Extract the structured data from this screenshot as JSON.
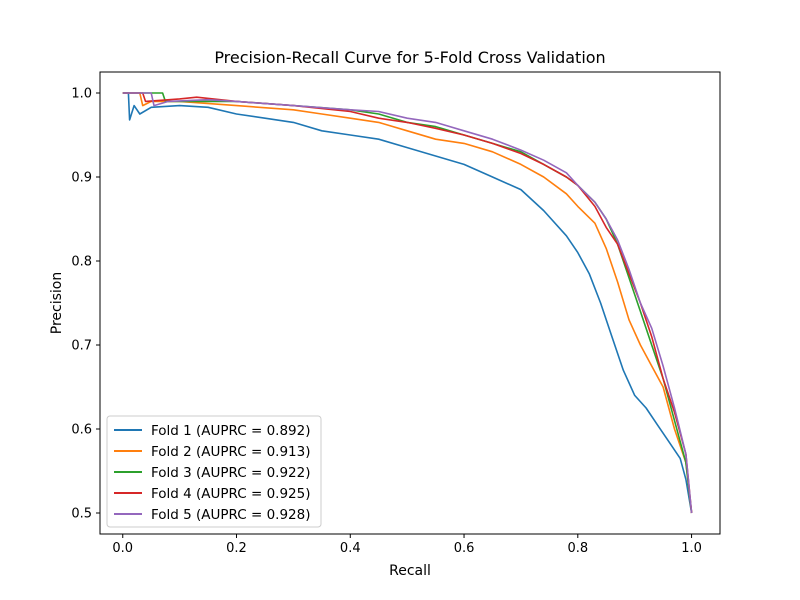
{
  "chart_data": {
    "type": "line",
    "title": "Precision-Recall Curve for 5-Fold Cross Validation",
    "xlabel": "Recall",
    "ylabel": "Precision",
    "xlim": [
      -0.04,
      1.05
    ],
    "ylim": [
      0.475,
      1.025
    ],
    "xticks": [
      "0.0",
      "0.2",
      "0.4",
      "0.6",
      "0.8",
      "1.0"
    ],
    "yticks": [
      "0.5",
      "0.6",
      "0.7",
      "0.8",
      "0.9",
      "1.0"
    ],
    "grid": false,
    "legend_position": "lower-left",
    "colors": [
      "#1f77b4",
      "#ff7f0e",
      "#2ca02c",
      "#d62728",
      "#9467bd"
    ],
    "series": [
      {
        "name": "Fold 1 (AUPRC = 0.892)",
        "points": [
          [
            0.0,
            1.0
          ],
          [
            0.01,
            1.0
          ],
          [
            0.012,
            0.968
          ],
          [
            0.02,
            0.985
          ],
          [
            0.03,
            0.975
          ],
          [
            0.05,
            0.983
          ],
          [
            0.1,
            0.985
          ],
          [
            0.15,
            0.983
          ],
          [
            0.2,
            0.975
          ],
          [
            0.25,
            0.97
          ],
          [
            0.3,
            0.965
          ],
          [
            0.35,
            0.955
          ],
          [
            0.4,
            0.95
          ],
          [
            0.45,
            0.945
          ],
          [
            0.5,
            0.935
          ],
          [
            0.55,
            0.925
          ],
          [
            0.6,
            0.915
          ],
          [
            0.65,
            0.9
          ],
          [
            0.7,
            0.885
          ],
          [
            0.74,
            0.86
          ],
          [
            0.78,
            0.83
          ],
          [
            0.8,
            0.81
          ],
          [
            0.82,
            0.785
          ],
          [
            0.84,
            0.75
          ],
          [
            0.86,
            0.71
          ],
          [
            0.88,
            0.67
          ],
          [
            0.9,
            0.64
          ],
          [
            0.92,
            0.625
          ],
          [
            0.94,
            0.605
          ],
          [
            0.96,
            0.585
          ],
          [
            0.98,
            0.565
          ],
          [
            0.99,
            0.54
          ],
          [
            1.0,
            0.5
          ]
        ]
      },
      {
        "name": "Fold 2 (AUPRC = 0.913)",
        "points": [
          [
            0.0,
            1.0
          ],
          [
            0.03,
            1.0
          ],
          [
            0.035,
            0.985
          ],
          [
            0.05,
            0.99
          ],
          [
            0.1,
            0.99
          ],
          [
            0.2,
            0.985
          ],
          [
            0.3,
            0.98
          ],
          [
            0.35,
            0.975
          ],
          [
            0.4,
            0.97
          ],
          [
            0.45,
            0.965
          ],
          [
            0.5,
            0.955
          ],
          [
            0.55,
            0.945
          ],
          [
            0.6,
            0.94
          ],
          [
            0.65,
            0.93
          ],
          [
            0.7,
            0.915
          ],
          [
            0.74,
            0.9
          ],
          [
            0.78,
            0.88
          ],
          [
            0.8,
            0.865
          ],
          [
            0.83,
            0.845
          ],
          [
            0.85,
            0.815
          ],
          [
            0.87,
            0.775
          ],
          [
            0.89,
            0.73
          ],
          [
            0.91,
            0.7
          ],
          [
            0.93,
            0.675
          ],
          [
            0.95,
            0.65
          ],
          [
            0.97,
            0.6
          ],
          [
            0.99,
            0.56
          ],
          [
            1.0,
            0.5
          ]
        ]
      },
      {
        "name": "Fold 3 (AUPRC = 0.922)",
        "points": [
          [
            0.0,
            1.0
          ],
          [
            0.07,
            1.0
          ],
          [
            0.075,
            0.99
          ],
          [
            0.1,
            0.99
          ],
          [
            0.2,
            0.99
          ],
          [
            0.3,
            0.985
          ],
          [
            0.4,
            0.98
          ],
          [
            0.45,
            0.975
          ],
          [
            0.5,
            0.965
          ],
          [
            0.55,
            0.96
          ],
          [
            0.6,
            0.95
          ],
          [
            0.65,
            0.94
          ],
          [
            0.7,
            0.93
          ],
          [
            0.74,
            0.915
          ],
          [
            0.78,
            0.9
          ],
          [
            0.8,
            0.89
          ],
          [
            0.83,
            0.87
          ],
          [
            0.85,
            0.85
          ],
          [
            0.87,
            0.82
          ],
          [
            0.89,
            0.78
          ],
          [
            0.91,
            0.74
          ],
          [
            0.93,
            0.7
          ],
          [
            0.95,
            0.66
          ],
          [
            0.97,
            0.61
          ],
          [
            0.99,
            0.56
          ],
          [
            1.0,
            0.5
          ]
        ]
      },
      {
        "name": "Fold 4 (AUPRC = 0.925)",
        "points": [
          [
            0.0,
            1.0
          ],
          [
            0.035,
            1.0
          ],
          [
            0.04,
            0.99
          ],
          [
            0.1,
            0.993
          ],
          [
            0.13,
            0.995
          ],
          [
            0.2,
            0.99
          ],
          [
            0.3,
            0.985
          ],
          [
            0.4,
            0.978
          ],
          [
            0.45,
            0.97
          ],
          [
            0.5,
            0.965
          ],
          [
            0.55,
            0.958
          ],
          [
            0.6,
            0.95
          ],
          [
            0.65,
            0.94
          ],
          [
            0.7,
            0.928
          ],
          [
            0.74,
            0.915
          ],
          [
            0.78,
            0.9
          ],
          [
            0.8,
            0.89
          ],
          [
            0.83,
            0.865
          ],
          [
            0.85,
            0.84
          ],
          [
            0.87,
            0.82
          ],
          [
            0.89,
            0.785
          ],
          [
            0.91,
            0.75
          ],
          [
            0.93,
            0.71
          ],
          [
            0.95,
            0.66
          ],
          [
            0.97,
            0.62
          ],
          [
            0.99,
            0.57
          ],
          [
            1.0,
            0.5
          ]
        ]
      },
      {
        "name": "Fold 5 (AUPRC = 0.928)",
        "points": [
          [
            0.0,
            1.0
          ],
          [
            0.05,
            1.0
          ],
          [
            0.055,
            0.985
          ],
          [
            0.08,
            0.99
          ],
          [
            0.15,
            0.992
          ],
          [
            0.2,
            0.99
          ],
          [
            0.3,
            0.985
          ],
          [
            0.4,
            0.98
          ],
          [
            0.45,
            0.978
          ],
          [
            0.5,
            0.97
          ],
          [
            0.55,
            0.965
          ],
          [
            0.6,
            0.955
          ],
          [
            0.65,
            0.945
          ],
          [
            0.7,
            0.932
          ],
          [
            0.74,
            0.92
          ],
          [
            0.78,
            0.905
          ],
          [
            0.8,
            0.89
          ],
          [
            0.83,
            0.87
          ],
          [
            0.85,
            0.85
          ],
          [
            0.87,
            0.825
          ],
          [
            0.89,
            0.79
          ],
          [
            0.91,
            0.75
          ],
          [
            0.93,
            0.72
          ],
          [
            0.95,
            0.675
          ],
          [
            0.97,
            0.625
          ],
          [
            0.99,
            0.57
          ],
          [
            1.0,
            0.5
          ]
        ]
      }
    ]
  }
}
